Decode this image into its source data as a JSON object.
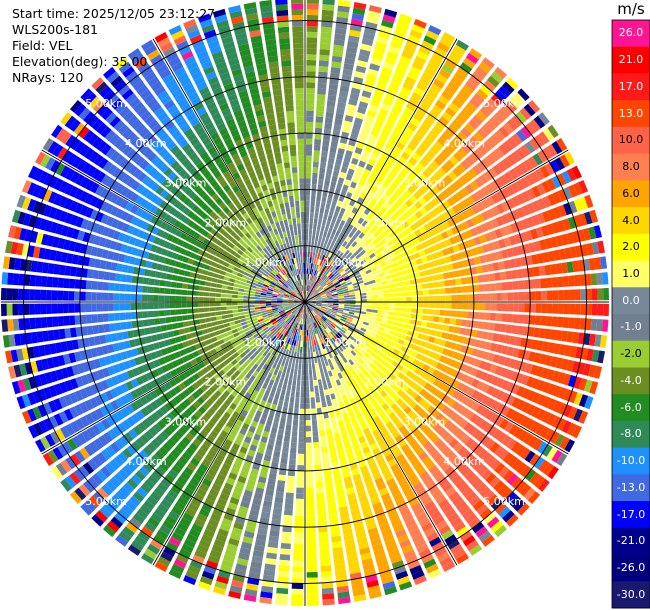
{
  "header": {
    "start_time": "Start time: 2025/12/05 23:12:27",
    "site": "WLS200s-181",
    "field": "Field: VEL",
    "elevation": "Elevation(deg): 35.00",
    "nrays": "NRays: 120"
  },
  "colorbar": {
    "unit": "m/s",
    "levels": [
      {
        "label": "26.0",
        "color": "#ff1493"
      },
      {
        "label": "21.0",
        "color": "#ff0000"
      },
      {
        "label": "17.0",
        "color": "#ff1a1a"
      },
      {
        "label": "13.0",
        "color": "#ff4500"
      },
      {
        "label": "10.0",
        "color": "#ff6347"
      },
      {
        "label": "8.0",
        "color": "#ff7f50"
      },
      {
        "label": "6.0",
        "color": "#ffa500"
      },
      {
        "label": "4.0",
        "color": "#ffd700"
      },
      {
        "label": "2.0",
        "color": "#ffff00"
      },
      {
        "label": "1.0",
        "color": "#ffff66"
      },
      {
        "label": "0.0",
        "color": "#778899"
      },
      {
        "label": "-1.0",
        "color": "#708090"
      },
      {
        "label": "-2.0",
        "color": "#9acd32"
      },
      {
        "label": "-4.0",
        "color": "#6b8e23"
      },
      {
        "label": "-6.0",
        "color": "#228b22"
      },
      {
        "label": "-8.0",
        "color": "#2e8b57"
      },
      {
        "label": "-10.0",
        "color": "#1e90ff"
      },
      {
        "label": "-13.0",
        "color": "#4169e1"
      },
      {
        "label": "-17.0",
        "color": "#0000ff"
      },
      {
        "label": "-21.0",
        "color": "#00008b"
      },
      {
        "label": "-26.0",
        "color": "#000080"
      },
      {
        "label": "-30.0",
        "color": "#191970"
      }
    ]
  },
  "chart_data": {
    "type": "heatmap",
    "projection": "polar (PPI)",
    "field": "VEL",
    "unit": "m/s",
    "range_rings_km": [
      1,
      2,
      3,
      4,
      5
    ],
    "range_labels": [
      "1.00km",
      "2.00km",
      "3.00km",
      "4.00km",
      "5.00km"
    ],
    "max_range_km": 5.4,
    "rays": 120,
    "spokes_deg": [
      0,
      30,
      60,
      90,
      120,
      150
    ],
    "grid": true,
    "velocity_pattern": {
      "positive_max_azimuth_deg": 100,
      "negative_max_azimuth_deg": 280,
      "zero_line_azimuths_deg": [
        10,
        190
      ],
      "velocity_at_range_km": [
        {
          "range_km": 1,
          "v": 1.0
        },
        {
          "range_km": 2,
          "v": 4.0
        },
        {
          "range_km": 3,
          "v": 8.0
        },
        {
          "range_km": 4,
          "v": 13.0
        },
        {
          "range_km": 5,
          "v": 17.0
        }
      ],
      "noise_zone_km": [
        0,
        0.9
      ],
      "noise_outer_km": 4.7
    }
  }
}
